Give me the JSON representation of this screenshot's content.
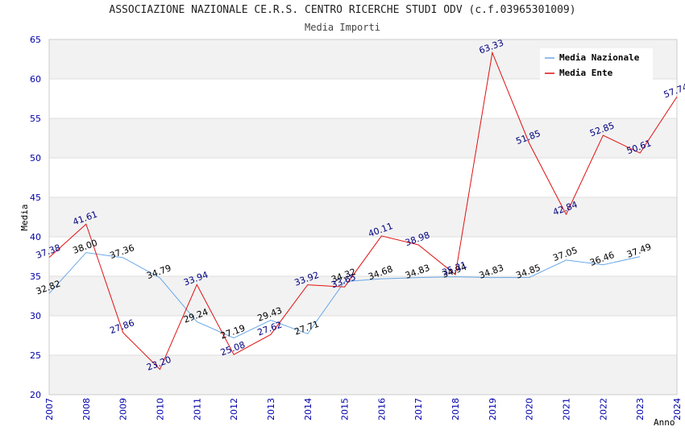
{
  "title": "ASSOCIAZIONE NAZIONALE CE.R.S. CENTRO RICERCHE STUDI ODV (c.f.03965301009)",
  "subtitle": "Media Importi",
  "chart_data": {
    "type": "line",
    "title": "Media Importi",
    "xlabel": "Anno",
    "ylabel": "Media",
    "ylim": [
      20,
      65
    ],
    "yticks": [
      20,
      25,
      30,
      35,
      40,
      45,
      50,
      55,
      60,
      65
    ],
    "grid": true,
    "legend_position": "top-right",
    "x": [
      "2007",
      "2008",
      "2009",
      "2010",
      "2011",
      "2012",
      "2013",
      "2014",
      "2015",
      "2016",
      "2017",
      "2018",
      "2019",
      "2020",
      "2021",
      "2022",
      "2023",
      "2024"
    ],
    "series": [
      {
        "name": "Media Nazionale",
        "color": "#6aa8e8",
        "values": [
          32.82,
          38.0,
          37.36,
          34.79,
          29.24,
          27.19,
          29.43,
          27.71,
          34.32,
          34.68,
          34.83,
          34.94,
          34.83,
          34.85,
          37.05,
          36.46,
          37.49,
          null
        ],
        "labels": [
          "32.82",
          "38.00",
          "37.36",
          "34.79",
          "29.24",
          "27.19",
          "29.43",
          "27.71",
          "34.32",
          "34.68",
          "34.83",
          "34.94",
          "34.83",
          "34.85",
          "37.05",
          "36.46",
          "37.49",
          ""
        ]
      },
      {
        "name": "Media Ente",
        "color": "#e01010",
        "values": [
          37.38,
          41.61,
          27.86,
          23.2,
          33.94,
          25.08,
          27.62,
          33.92,
          33.65,
          40.11,
          38.98,
          35.21,
          63.33,
          51.85,
          42.84,
          52.85,
          50.61,
          57.74
        ],
        "labels": [
          "37.38",
          "41.61",
          "27.86",
          "23.20",
          "33.94",
          "25.08",
          "27.62",
          "33.92",
          "33.65",
          "40.11",
          "38.98",
          "35.21",
          "63.33",
          "51.85",
          "42.84",
          "52.85",
          "50.61",
          "57.74"
        ]
      }
    ]
  }
}
